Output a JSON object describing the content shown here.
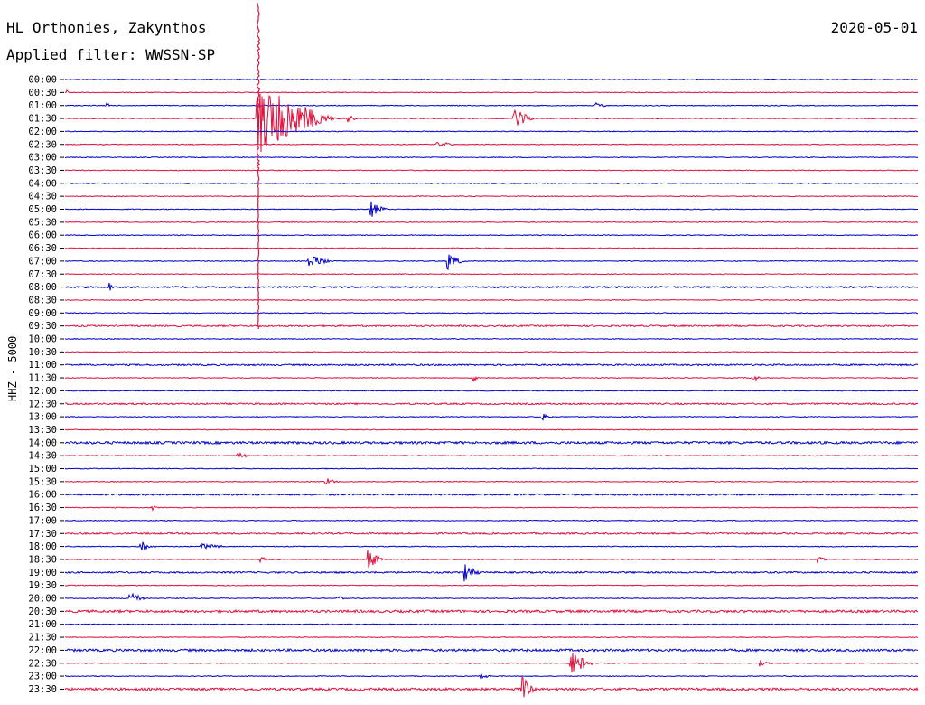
{
  "header": {
    "station": "HL Orthonies, Zakynthos",
    "date": "2020-05-01",
    "filter": "Applied filter: WWSSN-SP",
    "channel_label": "HHZ - 5000"
  },
  "colors": {
    "even_trace": "#0000cc",
    "odd_trace": "#e0103c",
    "background": "#ffffff"
  },
  "chart_data": {
    "type": "line",
    "title": "HL Orthonies, Zakynthos",
    "subtitle": "Applied filter: WWSSN-SP",
    "ylabel": "HHZ - 5000",
    "xlabel": "",
    "trace_labels": [
      "00:00",
      "00:30",
      "01:00",
      "01:30",
      "02:00",
      "02:30",
      "03:00",
      "03:30",
      "04:00",
      "04:30",
      "05:00",
      "05:30",
      "06:00",
      "06:30",
      "07:00",
      "07:30",
      "08:00",
      "08:30",
      "09:00",
      "09:30",
      "10:00",
      "10:30",
      "11:00",
      "11:30",
      "12:00",
      "12:30",
      "13:00",
      "13:30",
      "14:00",
      "14:30",
      "15:00",
      "15:30",
      "16:00",
      "16:30",
      "17:00",
      "17:30",
      "18:00",
      "18:30",
      "19:00",
      "19:30",
      "20:00",
      "20:30",
      "21:00",
      "21:30",
      "22:00",
      "22:30",
      "23:00",
      "23:30"
    ],
    "trace_duration_minutes": 30,
    "x_range_minutes": [
      0,
      30
    ],
    "noise_level": [
      1,
      1,
      1,
      1,
      1,
      1,
      1,
      1,
      1,
      1,
      1,
      1,
      1,
      1,
      1,
      1,
      2,
      1,
      1,
      2,
      1,
      1,
      2,
      1,
      1,
      2,
      1,
      1,
      3,
      1,
      1,
      1,
      2,
      1,
      1,
      2,
      1,
      1,
      2,
      1,
      1,
      3,
      1,
      1,
      3,
      1,
      1,
      3
    ],
    "events": [
      {
        "trace": 3,
        "minute": 6.8,
        "amplitude": 40,
        "duration": 3.0,
        "note": "major event"
      },
      {
        "trace": 3,
        "minute": 10.0,
        "amplitude": 4,
        "duration": 0.3
      },
      {
        "trace": 3,
        "minute": 15.8,
        "amplitude": 12,
        "duration": 0.8
      },
      {
        "trace": 1,
        "minute": 0.1,
        "amplitude": 2,
        "duration": 0.1
      },
      {
        "trace": 2,
        "minute": 1.5,
        "amplitude": 2,
        "duration": 0.2
      },
      {
        "trace": 2,
        "minute": 18.7,
        "amplitude": 3,
        "duration": 0.5
      },
      {
        "trace": 5,
        "minute": 1.3,
        "amplitude": 2,
        "duration": 0.2
      },
      {
        "trace": 5,
        "minute": 13.1,
        "amplitude": 3,
        "duration": 0.8
      },
      {
        "trace": 10,
        "minute": 10.8,
        "amplitude": 11,
        "duration": 0.6
      },
      {
        "trace": 14,
        "minute": 8.6,
        "amplitude": 9,
        "duration": 0.9
      },
      {
        "trace": 14,
        "minute": 13.5,
        "amplitude": 10,
        "duration": 0.6
      },
      {
        "trace": 16,
        "minute": 1.6,
        "amplitude": 4,
        "duration": 0.2
      },
      {
        "trace": 23,
        "minute": 14.4,
        "amplitude": 4,
        "duration": 0.4
      },
      {
        "trace": 23,
        "minute": 24.2,
        "amplitude": 4,
        "duration": 0.4
      },
      {
        "trace": 26,
        "minute": 16.8,
        "amplitude": 4,
        "duration": 0.5
      },
      {
        "trace": 29,
        "minute": 6.1,
        "amplitude": 3,
        "duration": 0.6
      },
      {
        "trace": 31,
        "minute": 9.2,
        "amplitude": 4,
        "duration": 0.5
      },
      {
        "trace": 33,
        "minute": 3.1,
        "amplitude": 3,
        "duration": 0.3
      },
      {
        "trace": 36,
        "minute": 2.7,
        "amplitude": 5,
        "duration": 0.6
      },
      {
        "trace": 36,
        "minute": 4.8,
        "amplitude": 3,
        "duration": 1.2
      },
      {
        "trace": 37,
        "minute": 6.9,
        "amplitude": 5,
        "duration": 0.3
      },
      {
        "trace": 37,
        "minute": 10.7,
        "amplitude": 10,
        "duration": 0.6
      },
      {
        "trace": 37,
        "minute": 26.5,
        "amplitude": 4,
        "duration": 0.4
      },
      {
        "trace": 38,
        "minute": 14.1,
        "amplitude": 10,
        "duration": 0.6
      },
      {
        "trace": 40,
        "minute": 2.3,
        "amplitude": 7,
        "duration": 0.6
      },
      {
        "trace": 40,
        "minute": 9.6,
        "amplitude": 3,
        "duration": 0.3
      },
      {
        "trace": 45,
        "minute": 17.8,
        "amplitude": 13,
        "duration": 0.9
      },
      {
        "trace": 45,
        "minute": 24.5,
        "amplitude": 4,
        "duration": 0.4
      },
      {
        "trace": 46,
        "minute": 14.6,
        "amplitude": 3,
        "duration": 0.5
      },
      {
        "trace": 47,
        "minute": 16.1,
        "amplitude": 14,
        "duration": 0.5
      }
    ]
  }
}
